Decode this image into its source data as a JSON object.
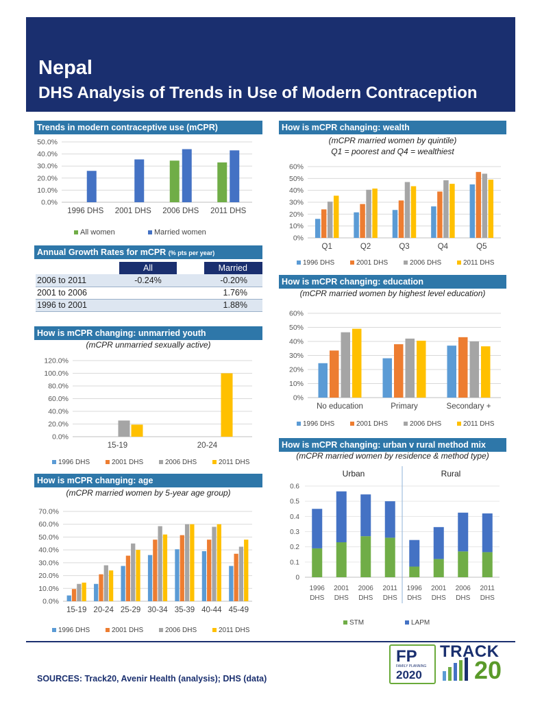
{
  "title": "Nepal",
  "subtitle": "DHS Analysis of Trends in Use of Modern Contraception",
  "colors": {
    "navy": "#1a2f6f",
    "section": "#2e77a9",
    "blue": "#4472c4",
    "green": "#70ad47",
    "s1996": "#5b9bd5",
    "s2001": "#ed7d31",
    "s2006": "#a5a5a5",
    "s2011": "#ffc000"
  },
  "sections": {
    "trends": "Trends in modern contraceptive use (mCPR)",
    "growth": "Annual Growth Rates for mCPR",
    "growth_small": "(% pts per year)",
    "youth": "How is mCPR changing: unmarried youth",
    "youth_sub": "(mCPR unmarried sexually active)",
    "age": "How is mCPR changing: age",
    "age_sub": "(mCPR married women by 5-year age group)",
    "wealth": "How is mCPR changing: wealth",
    "wealth_sub1": "(mCPR married women by quintile)",
    "wealth_sub2": "Q1 = poorest and Q4 = wealthiest",
    "education": "How is mCPR changing: education",
    "education_sub": "(mCPR married women by highest level education)",
    "urban": "How is mCPR changing: urban v rural method mix",
    "urban_sub": "(mCPR married women by residence & method type)"
  },
  "growth_table": {
    "headers": [
      "All",
      "Married"
    ],
    "rows": [
      {
        "label": "2006 to 2011",
        "all": "-0.24%",
        "married": "-0.20%"
      },
      {
        "label": "2001 to 2006",
        "all": "",
        "married": "1.76%"
      },
      {
        "label": "1996 to 2001",
        "all": "",
        "married": "1.88%"
      }
    ]
  },
  "year_legend": [
    "1996 DHS",
    "2001 DHS",
    "2006 DHS",
    "2011 DHS"
  ],
  "chart_data": [
    {
      "id": "trends",
      "type": "bar",
      "categories": [
        "1996 DHS",
        "2001 DHS",
        "2006 DHS",
        "2011 DHS"
      ],
      "series": [
        {
          "name": "All women",
          "values": [
            null,
            null,
            34.5,
            33.0
          ]
        },
        {
          "name": "Married women",
          "values": [
            26.0,
            35.5,
            44.0,
            43.0
          ]
        }
      ],
      "ylim": [
        0,
        50
      ],
      "yticks": [
        "0.0%",
        "10.0%",
        "20.0%",
        "30.0%",
        "40.0%",
        "50.0%"
      ]
    },
    {
      "id": "youth",
      "type": "bar",
      "categories": [
        "15-19",
        "20-24"
      ],
      "series": [
        {
          "name": "1996 DHS",
          "values": [
            null,
            null
          ]
        },
        {
          "name": "2001 DHS",
          "values": [
            null,
            null
          ]
        },
        {
          "name": "2006 DHS",
          "values": [
            25.5,
            null
          ]
        },
        {
          "name": "2011 DHS",
          "values": [
            19.0,
            100.0
          ]
        }
      ],
      "ylim": [
        0,
        120
      ],
      "yticks": [
        "0.0%",
        "20.0%",
        "40.0%",
        "60.0%",
        "80.0%",
        "100.0%",
        "120.0%"
      ]
    },
    {
      "id": "age",
      "type": "bar",
      "categories": [
        "15-19",
        "20-24",
        "25-29",
        "30-34",
        "35-39",
        "40-44",
        "45-49"
      ],
      "series": [
        {
          "name": "1996 DHS",
          "values": [
            4.5,
            13.5,
            27.5,
            36.0,
            40.5,
            39.0,
            27.5
          ]
        },
        {
          "name": "2001 DHS",
          "values": [
            9.5,
            21.0,
            35.5,
            48.0,
            51.5,
            48.0,
            37.0
          ]
        },
        {
          "name": "2006 DHS",
          "values": [
            13.5,
            28.0,
            45.0,
            58.5,
            60.0,
            58.0,
            42.5
          ]
        },
        {
          "name": "2011 DHS",
          "values": [
            14.5,
            24.0,
            40.0,
            52.0,
            60.0,
            60.0,
            48.0
          ]
        }
      ],
      "ylim": [
        0,
        70
      ],
      "yticks": [
        "0.0%",
        "10.0%",
        "20.0%",
        "30.0%",
        "40.0%",
        "50.0%",
        "60.0%",
        "70.0%"
      ]
    },
    {
      "id": "wealth",
      "type": "bar",
      "categories": [
        "Q1",
        "Q2",
        "Q3",
        "Q4",
        "Q5"
      ],
      "series": [
        {
          "name": "1996 DHS",
          "values": [
            16,
            21.5,
            23.5,
            26.5,
            45
          ]
        },
        {
          "name": "2001 DHS",
          "values": [
            24,
            28.5,
            31.5,
            39,
            55.5
          ]
        },
        {
          "name": "2006 DHS",
          "values": [
            30.5,
            40.5,
            47,
            48.5,
            54
          ]
        },
        {
          "name": "2011 DHS",
          "values": [
            35.5,
            41.5,
            43.5,
            45.5,
            49
          ]
        }
      ],
      "ylim": [
        0,
        60
      ],
      "yticks": [
        "0%",
        "10%",
        "20%",
        "30%",
        "40%",
        "50%",
        "60%"
      ]
    },
    {
      "id": "education",
      "type": "bar",
      "categories": [
        "No education",
        "Primary",
        "Secondary +"
      ],
      "series": [
        {
          "name": "1996 DHS",
          "values": [
            24.5,
            28,
            37
          ]
        },
        {
          "name": "2001 DHS",
          "values": [
            33.5,
            38,
            43
          ]
        },
        {
          "name": "2006 DHS",
          "values": [
            46.5,
            42,
            40
          ]
        },
        {
          "name": "2011 DHS",
          "values": [
            49,
            40.5,
            36.5
          ]
        }
      ],
      "ylim": [
        0,
        60
      ],
      "yticks": [
        "0%",
        "10%",
        "20%",
        "30%",
        "40%",
        "50%",
        "60%"
      ]
    },
    {
      "id": "urban_rural",
      "type": "bar",
      "stacked": true,
      "groups": [
        "Urban",
        "Rural"
      ],
      "categories": [
        "1996 DHS",
        "2001 DHS",
        "2006 DHS",
        "2011 DHS",
        "1996 DHS",
        "2001 DHS",
        "2006 DHS",
        "2011 DHS"
      ],
      "series": [
        {
          "name": "STM",
          "values": [
            0.19,
            0.23,
            0.27,
            0.26,
            0.07,
            0.12,
            0.17,
            0.165
          ]
        },
        {
          "name": "LAPM",
          "values": [
            0.26,
            0.335,
            0.275,
            0.24,
            0.175,
            0.21,
            0.255,
            0.255
          ]
        }
      ],
      "ylim": [
        0,
        0.6
      ],
      "yticks": [
        "0",
        "0.1",
        "0.2",
        "0.3",
        "0.4",
        "0.5",
        "0.6"
      ]
    }
  ],
  "sources": "SOURCES: Track20, Avenir Health (analysis); DHS (data)",
  "logos": {
    "fp_letters": "FP",
    "fp_text": "FAMILY PLANNING",
    "fp_year": "2020",
    "track": "TRACK",
    "track_num": "20"
  }
}
